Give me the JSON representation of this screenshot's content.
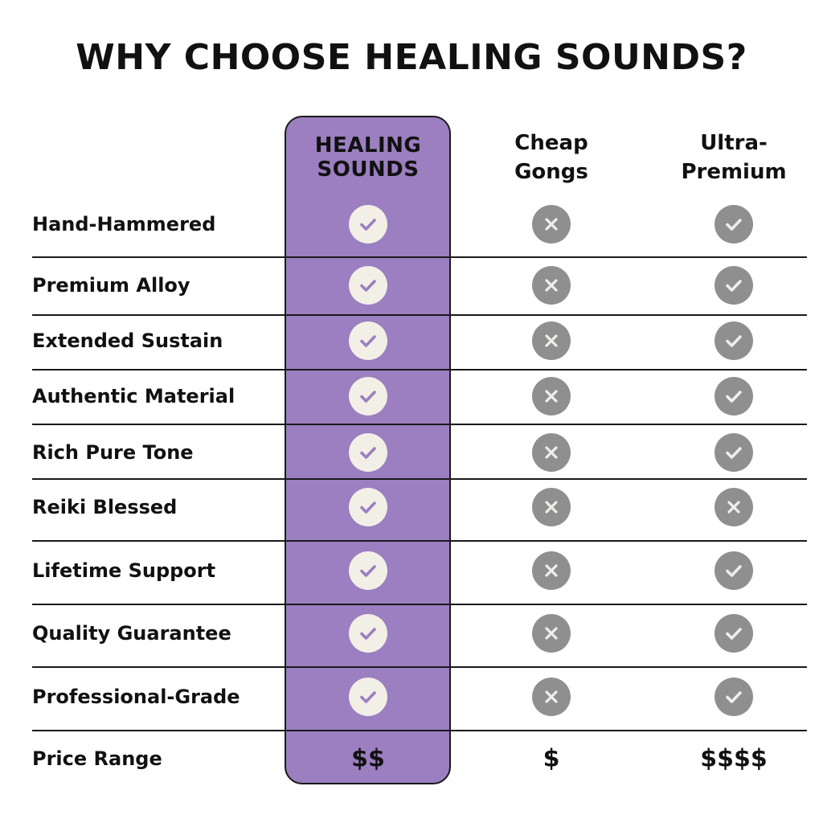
{
  "title": "WHY CHOOSE HEALING SOUNDS?",
  "colors": {
    "highlight_column": "#9b7fc0",
    "check_circle": "#f2efe6",
    "check_mark": "#9b7fc0",
    "gray_circle": "#8f8f8f",
    "gray_mark": "#eeeeea"
  },
  "columns": [
    {
      "label_line1": "HEALING",
      "label_line2": "SOUNDS",
      "highlighted": true
    },
    {
      "label_line1": "Cheap",
      "label_line2": "Gongs",
      "highlighted": false
    },
    {
      "label_line1": "Ultra-",
      "label_line2": "Premium",
      "highlighted": false
    }
  ],
  "rows": [
    {
      "label": "Hand-Hammered",
      "values": [
        "check-icon",
        "x-icon",
        "check-icon"
      ]
    },
    {
      "label": "Premium Alloy",
      "values": [
        "check-icon",
        "x-icon",
        "check-icon"
      ]
    },
    {
      "label": "Extended Sustain",
      "values": [
        "check-icon",
        "x-icon",
        "check-icon"
      ]
    },
    {
      "label": "Authentic Material",
      "values": [
        "check-icon",
        "x-icon",
        "check-icon"
      ]
    },
    {
      "label": "Rich Pure Tone",
      "values": [
        "check-icon",
        "x-icon",
        "check-icon"
      ]
    },
    {
      "label": "Reiki Blessed",
      "values": [
        "check-icon",
        "x-icon",
        "x-icon"
      ]
    },
    {
      "label": "Lifetime Support",
      "values": [
        "check-icon",
        "x-icon",
        "check-icon"
      ]
    },
    {
      "label": "Quality Guarantee",
      "values": [
        "check-icon",
        "x-icon",
        "check-icon"
      ]
    },
    {
      "label": "Professional-Grade",
      "values": [
        "check-icon",
        "x-icon",
        "check-icon"
      ]
    }
  ],
  "price_row": {
    "label": "Price Range",
    "values": [
      "$$",
      "$",
      "$$$$"
    ]
  }
}
